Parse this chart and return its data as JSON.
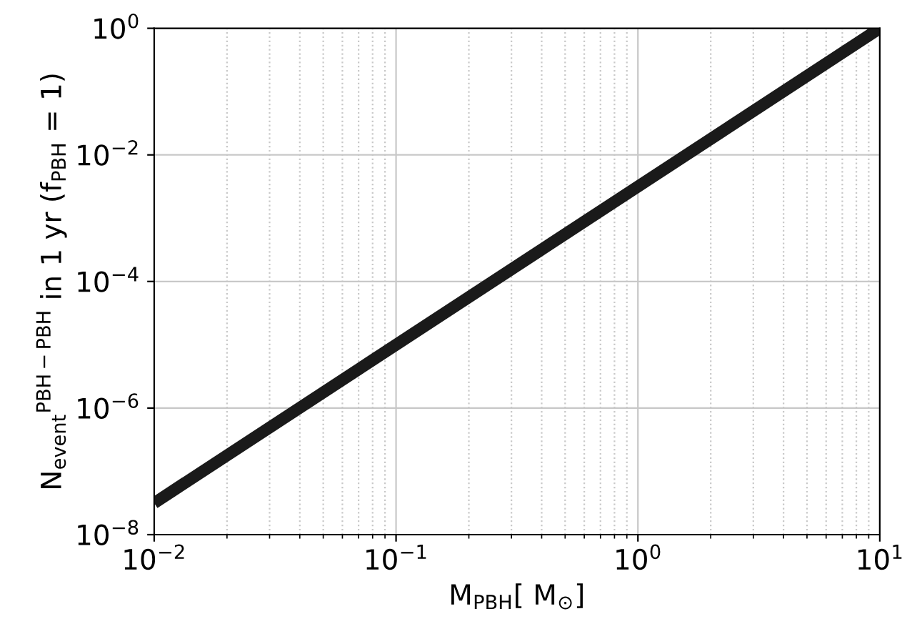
{
  "chart_data": {
    "type": "line",
    "log": "xy",
    "xlabel": "M$_{PBH}$[ M$_{⊙}$]",
    "ylabel": "N$_{event}$$^{PBH−PBH}$ in 1 yr (f$_{PBH}$ = 1)",
    "x": [
      0.01,
      10
    ],
    "series": [
      {
        "color": "#1a1a1a",
        "values": [
          3.16e-08,
          1
        ]
      }
    ],
    "xlim": [
      0.01,
      10
    ],
    "ylim": [
      1e-08,
      1
    ],
    "xticks": [
      {
        "value": 0.01,
        "label": "10$^{−2}$"
      },
      {
        "value": 0.1,
        "label": "10$^{−1}$"
      },
      {
        "value": 1,
        "label": "10$^{0}$"
      },
      {
        "value": 10,
        "label": "10$^{1}$"
      }
    ],
    "yticks": [
      {
        "value": 1e-08,
        "label": "10$^{−8}$"
      },
      {
        "value": 1e-06,
        "label": "10$^{−6}$"
      },
      {
        "value": 0.0001,
        "label": "10$^{−4}$"
      },
      {
        "value": 0.01,
        "label": "10$^{−2}$"
      },
      {
        "value": 1,
        "label": "10$^{0}$"
      }
    ],
    "grid": true,
    "line_style": "solid",
    "marker": "none"
  }
}
